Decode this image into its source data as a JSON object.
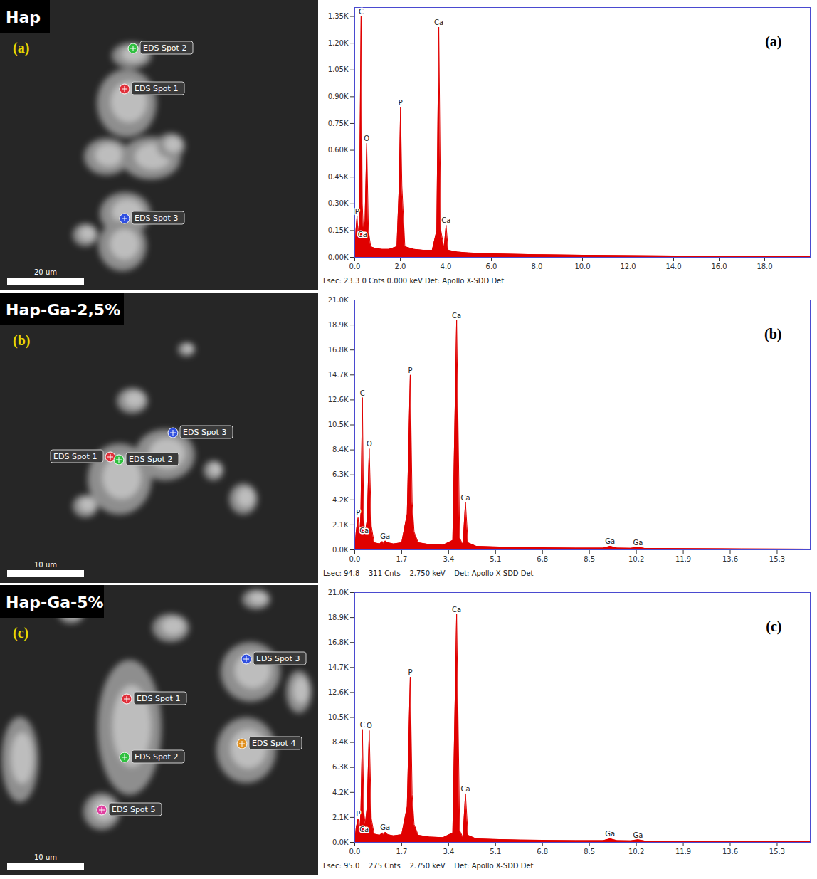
{
  "chart_data": [
    {
      "type": "area",
      "panel_label": "(a)",
      "color": "#e00000",
      "footer": "Lsec: 23.3 0 Cnts 0.000 keV Det: Apollo X-SDD Det",
      "x": [
        0,
        0.05,
        0.1,
        0.15,
        0.2,
        0.277,
        0.33,
        0.38,
        0.45,
        0.525,
        0.6,
        0.7,
        0.9,
        1.2,
        1.5,
        1.85,
        1.95,
        2.01,
        2.07,
        2.2,
        2.6,
        3.0,
        3.4,
        3.6,
        3.69,
        3.78,
        3.92,
        4.01,
        4.1,
        4.5,
        5.0,
        6.0,
        8.0,
        10.0,
        12.0,
        14.0,
        16.0,
        18.0,
        20.0
      ],
      "values": [
        0,
        150,
        230,
        120,
        200,
        1350,
        300,
        150,
        200,
        640,
        150,
        60,
        50,
        45,
        45,
        60,
        400,
        840,
        400,
        60,
        45,
        40,
        40,
        150,
        1290,
        150,
        50,
        180,
        40,
        30,
        25,
        20,
        15,
        12,
        10,
        8,
        7,
        6,
        5
      ],
      "peaks": [
        {
          "label": "C",
          "x": 0.277,
          "y": 1350
        },
        {
          "label": "O",
          "x": 0.525,
          "y": 640
        },
        {
          "label": "P",
          "x": 0.1,
          "y": 230
        },
        {
          "label": "Ca",
          "x": 0.34,
          "y": 100
        },
        {
          "label": "P",
          "x": 2.01,
          "y": 840
        },
        {
          "label": "Ca",
          "x": 3.69,
          "y": 1290
        },
        {
          "label": "Ca",
          "x": 4.01,
          "y": 180
        }
      ],
      "xlim": [
        0,
        20
      ],
      "xticks": [
        {
          "value": 0,
          "label": "0.0"
        },
        {
          "value": 2,
          "label": "2.0"
        },
        {
          "value": 4,
          "label": "4.0"
        },
        {
          "value": 6,
          "label": "6.0"
        },
        {
          "value": 8,
          "label": "8.0"
        },
        {
          "value": 10,
          "label": "10.0"
        },
        {
          "value": 12,
          "label": "12.0"
        },
        {
          "value": 14,
          "label": "14.0"
        },
        {
          "value": 16,
          "label": "16.0"
        },
        {
          "value": 18,
          "label": "18.0"
        }
      ],
      "ylim": [
        0,
        1400
      ],
      "yticks": [
        {
          "value": 0,
          "label": "0.00K"
        },
        {
          "value": 150,
          "label": "0.15K"
        },
        {
          "value": 300,
          "label": "0.30K"
        },
        {
          "value": 450,
          "label": "0.45K"
        },
        {
          "value": 600,
          "label": "0.60K"
        },
        {
          "value": 750,
          "label": "0.75K"
        },
        {
          "value": 900,
          "label": "0.90K"
        },
        {
          "value": 1050,
          "label": "1.05K"
        },
        {
          "value": 1200,
          "label": "1.20K"
        },
        {
          "value": 1350,
          "label": "1.35K"
        }
      ]
    },
    {
      "type": "area",
      "panel_label": "(b)",
      "color": "#e00000",
      "footer": "Lsec: 94.8    311 Cnts    2.750 keV    Det: Apollo X-SDD Det",
      "x": [
        0,
        0.05,
        0.12,
        0.18,
        0.22,
        0.277,
        0.32,
        0.36,
        0.45,
        0.525,
        0.6,
        0.7,
        0.9,
        1.0,
        1.05,
        1.1,
        1.2,
        1.4,
        1.7,
        1.9,
        2.01,
        2.08,
        2.15,
        2.3,
        2.7,
        3.2,
        3.55,
        3.69,
        3.8,
        3.92,
        4.01,
        4.1,
        4.4,
        5.0,
        6.0,
        7.0,
        8.0,
        9.0,
        9.25,
        9.5,
        10.0,
        10.26,
        10.5,
        12.0,
        14.0,
        16.5
      ],
      "values": [
        0,
        1500,
        2700,
        1200,
        3000,
        12800,
        3000,
        1200,
        2500,
        8500,
        2000,
        600,
        500,
        700,
        500,
        750,
        600,
        500,
        600,
        3000,
        14700,
        4000,
        1500,
        600,
        450,
        400,
        800,
        19300,
        1000,
        400,
        4000,
        600,
        300,
        250,
        200,
        170,
        150,
        150,
        300,
        150,
        130,
        220,
        120,
        100,
        80,
        60
      ],
      "peaks": [
        {
          "label": "C",
          "x": 0.277,
          "y": 12800
        },
        {
          "label": "O",
          "x": 0.525,
          "y": 8500
        },
        {
          "label": "P",
          "x": 0.12,
          "y": 2700
        },
        {
          "label": "Ca",
          "x": 0.34,
          "y": 1200
        },
        {
          "label": "Ga",
          "x": 1.1,
          "y": 750
        },
        {
          "label": "P",
          "x": 2.01,
          "y": 14700
        },
        {
          "label": "Ca",
          "x": 3.69,
          "y": 19300
        },
        {
          "label": "Ca",
          "x": 4.01,
          "y": 4000
        },
        {
          "label": "Ga",
          "x": 9.25,
          "y": 300
        },
        {
          "label": "Ga",
          "x": 10.26,
          "y": 220
        }
      ],
      "xlim": [
        0,
        16.5
      ],
      "xticks": [
        {
          "value": 0,
          "label": "0.0"
        },
        1.7,
        3.4,
        5.1,
        6.8,
        8.5,
        10.2,
        11.9,
        13.6,
        15.3
      ],
      "ylim": [
        0,
        21000
      ],
      "yticks": [
        {
          "value": 0,
          "label": "0.0K"
        },
        {
          "value": 2100,
          "label": "2.1K"
        },
        {
          "value": 4200,
          "label": "4.2K"
        },
        {
          "value": 6300,
          "label": "6.3K"
        },
        {
          "value": 8400,
          "label": "8.4K"
        },
        {
          "value": 10500,
          "label": "10.5K"
        },
        {
          "value": 12600,
          "label": "12.6K"
        },
        {
          "value": 14700,
          "label": "14.7K"
        },
        {
          "value": 16800,
          "label": "16.8K"
        },
        {
          "value": 18900,
          "label": "18.9K"
        },
        {
          "value": 21000,
          "label": "21.0K"
        }
      ]
    },
    {
      "type": "area",
      "panel_label": "(c)",
      "color": "#e00000",
      "footer": "Lsec: 95.0    275 Cnts    2.750 keV    Det: Apollo X-SDD Det",
      "x": [
        0,
        0.05,
        0.12,
        0.18,
        0.22,
        0.277,
        0.33,
        0.38,
        0.45,
        0.525,
        0.6,
        0.7,
        0.9,
        1.0,
        1.05,
        1.1,
        1.2,
        1.4,
        1.7,
        1.9,
        2.01,
        2.08,
        2.15,
        2.3,
        2.7,
        3.2,
        3.55,
        3.69,
        3.8,
        3.92,
        4.01,
        4.1,
        4.4,
        5.0,
        6.0,
        7.0,
        8.0,
        9.0,
        9.25,
        9.5,
        10.0,
        10.26,
        10.5,
        12.0,
        14.0,
        16.5
      ],
      "values": [
        0,
        1200,
        2000,
        900,
        2500,
        9500,
        2500,
        1500,
        3000,
        9400,
        2000,
        700,
        600,
        800,
        600,
        850,
        650,
        550,
        650,
        3000,
        13900,
        4000,
        1500,
        600,
        450,
        400,
        800,
        19200,
        1000,
        400,
        4100,
        600,
        300,
        250,
        200,
        170,
        150,
        150,
        300,
        150,
        130,
        220,
        120,
        100,
        80,
        60
      ],
      "peaks": [
        {
          "label": "C",
          "x": 0.277,
          "y": 9500
        },
        {
          "label": "O",
          "x": 0.525,
          "y": 9400
        },
        {
          "label": "P",
          "x": 0.12,
          "y": 2000
        },
        {
          "label": "Ca",
          "x": 0.34,
          "y": 700
        },
        {
          "label": "Ga",
          "x": 1.1,
          "y": 850
        },
        {
          "label": "P",
          "x": 2.01,
          "y": 13900
        },
        {
          "label": "Ca",
          "x": 3.69,
          "y": 19200
        },
        {
          "label": "Ca",
          "x": 4.01,
          "y": 4100
        },
        {
          "label": "Ga",
          "x": 9.25,
          "y": 300
        },
        {
          "label": "Ga",
          "x": 10.26,
          "y": 220
        }
      ],
      "xlim": [
        0,
        16.5
      ],
      "xticks": [
        {
          "value": 0,
          "label": "0.0"
        },
        1.7,
        3.4,
        5.1,
        6.8,
        8.5,
        10.2,
        11.9,
        13.6,
        15.3
      ],
      "ylim": [
        0,
        21000
      ],
      "yticks": [
        {
          "value": 0,
          "label": "0.0K"
        },
        {
          "value": 2100,
          "label": "2.1K"
        },
        {
          "value": 4200,
          "label": "4.2K"
        },
        {
          "value": 6300,
          "label": "6.3K"
        },
        {
          "value": 8400,
          "label": "8.4K"
        },
        {
          "value": 10500,
          "label": "10.5K"
        },
        {
          "value": 12600,
          "label": "12.6K"
        },
        {
          "value": 14700,
          "label": "14.7K"
        },
        {
          "value": 16800,
          "label": "16.8K"
        },
        {
          "value": 18900,
          "label": "18.9K"
        },
        {
          "value": 21000,
          "label": "21.0K"
        }
      ]
    }
  ],
  "images": [
    {
      "title": "Hap",
      "panel_label": "(a)",
      "spots": [
        "EDS Spot 1",
        "EDS Spot 2",
        "EDS Spot 3"
      ],
      "scale_bar": "20 um"
    },
    {
      "title": "Hap-Ga-2,5%",
      "panel_label": "(b)",
      "spots": [
        "EDS Spot 1",
        "EDS Spot 2",
        "EDS Spot 3"
      ],
      "scale_bar": "10 um"
    },
    {
      "title": "Hap-Ga-5%",
      "panel_label": "(c)",
      "spots": [
        "EDS Spot 1",
        "EDS Spot 2",
        "EDS Spot 3",
        "EDS Spot 4",
        "EDS Spot 5"
      ],
      "scale_bar": "10 um"
    }
  ]
}
